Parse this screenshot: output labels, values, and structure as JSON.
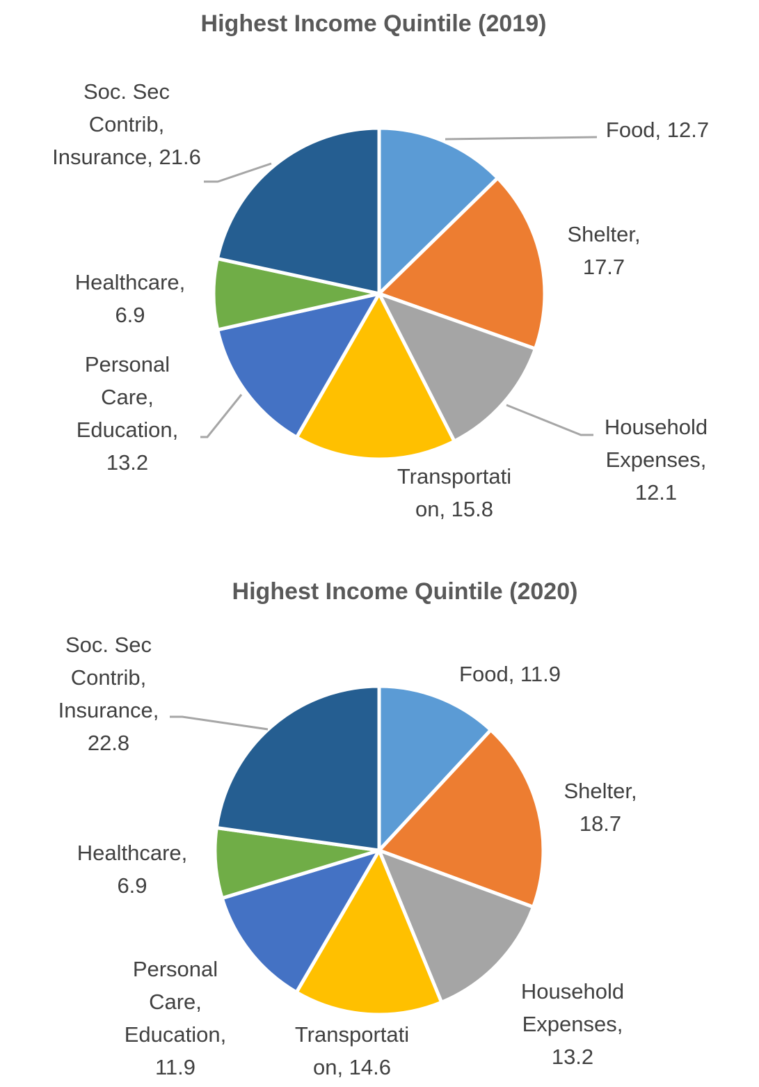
{
  "chart_data": [
    {
      "type": "pie",
      "title": "Highest Income Quintile (2019)",
      "categories": [
        "Food",
        "Shelter",
        "Household Expenses",
        "Transportation",
        "Personal Care, Education",
        "Healthcare",
        "Soc. Sec Contrib, Insurance"
      ],
      "values": [
        12.7,
        17.7,
        12.1,
        15.8,
        13.2,
        6.9,
        21.6
      ],
      "colors": [
        "#5B9BD5",
        "#ED7D31",
        "#A5A5A5",
        "#FFC000",
        "#4472C4",
        "#70AD47",
        "#255E91"
      ],
      "data_labels": [
        [
          "Food, 12.7"
        ],
        [
          "Shelter,",
          "17.7"
        ],
        [
          "Household",
          "Expenses,",
          "12.1"
        ],
        [
          "Transportati",
          "on, 15.8"
        ],
        [
          "Personal",
          "Care,",
          "Education,",
          "13.2"
        ],
        [
          "Healthcare,",
          "6.9"
        ],
        [
          "Soc. Sec",
          "Contrib,",
          "Insurance, 21.6"
        ]
      ],
      "legend": "none"
    },
    {
      "type": "pie",
      "title": "Highest Income Quintile (2020)",
      "categories": [
        "Food",
        "Shelter",
        "Household Expenses",
        "Transportation",
        "Personal Care, Education",
        "Healthcare",
        "Soc. Sec Contrib, Insurance"
      ],
      "values": [
        11.9,
        18.7,
        13.2,
        14.6,
        11.9,
        6.9,
        22.8
      ],
      "colors": [
        "#5B9BD5",
        "#ED7D31",
        "#A5A5A5",
        "#FFC000",
        "#4472C4",
        "#70AD47",
        "#255E91"
      ],
      "data_labels": [
        [
          "Food, 11.9"
        ],
        [
          "Shelter,",
          "18.7"
        ],
        [
          "Household",
          "Expenses,",
          "13.2"
        ],
        [
          "Transportati",
          "on, 14.6"
        ],
        [
          "Personal",
          "Care,",
          "Education,",
          "11.9"
        ],
        [
          "Healthcare,",
          "6.9"
        ],
        [
          "Soc. Sec",
          "Contrib,",
          "Insurance,",
          "22.8"
        ]
      ],
      "legend": "none"
    }
  ]
}
